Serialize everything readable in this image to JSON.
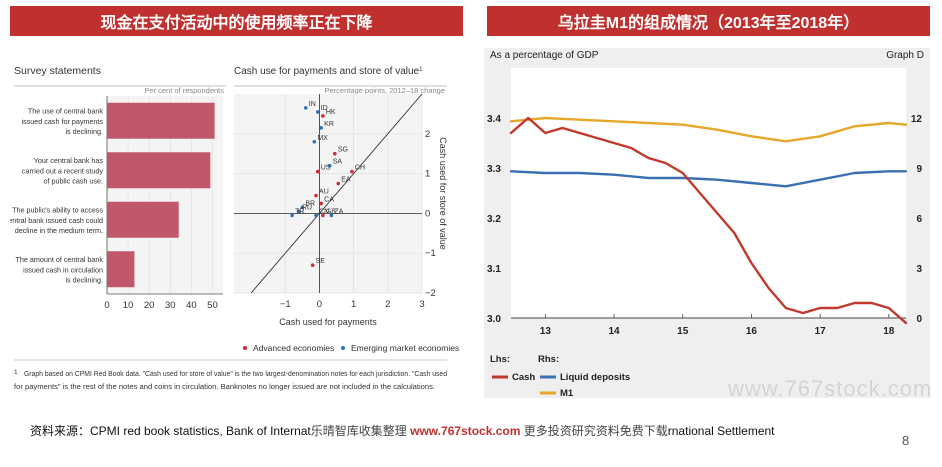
{
  "banners": {
    "left": "现金在支付活动中的使用频率正在下降",
    "right": "乌拉圭M1的组成情况（2013年至2018年）"
  },
  "chart_data": [
    {
      "type": "bar",
      "title": "Survey statements",
      "unit_label": "Per cent of respondents",
      "orientation": "horizontal",
      "categories": [
        "The use of central bank issued cash for payments is declining.",
        "Your central bank has carried out a recent study of public cash use.",
        "The public's ability to access central bank issued cash could decline in the medium term.",
        "The amount of central bank issued cash in circulation is declining."
      ],
      "category_lines": [
        [
          "The use of central bank",
          "issued cash for payments",
          "is declining."
        ],
        [
          "Your central bank has",
          "carried out a recent study",
          "of public cash use."
        ],
        [
          "The public's ability to access",
          "central bank issued cash could",
          "decline in the medium term."
        ],
        [
          "The amount of central bank",
          "issued cash in circulation",
          "is declining."
        ]
      ],
      "values": [
        51,
        49,
        34,
        13
      ],
      "xlim": [
        0,
        55
      ],
      "xticks": [
        0,
        10,
        20,
        30,
        40,
        50
      ],
      "bar_color": "#c1576a"
    },
    {
      "type": "scatter",
      "title": "Cash use for payments and store of value",
      "title_sup": "1",
      "subtitle": "Percentage points, 2012–18 change",
      "xlabel": "Cash used for payments",
      "ylabel": "Cash used for store of value",
      "xlim": [
        -2.5,
        3
      ],
      "ylim": [
        -2,
        3
      ],
      "xticks": [
        -1,
        0,
        1,
        2,
        3
      ],
      "yticks": [
        -2,
        -1,
        0,
        1,
        2
      ],
      "diagonal": true,
      "series": [
        {
          "name": "Advanced economies",
          "color": "#d3283a"
        },
        {
          "name": "Emerging market economies",
          "color": "#2f6fb5"
        }
      ],
      "points": [
        {
          "label": "IN",
          "x": -0.4,
          "y": 2.65,
          "series": 1
        },
        {
          "label": "ID",
          "x": -0.05,
          "y": 2.55,
          "series": 1
        },
        {
          "label": "HK",
          "x": 0.1,
          "y": 2.45,
          "series": 0
        },
        {
          "label": "KR",
          "x": 0.05,
          "y": 2.15,
          "series": 1
        },
        {
          "label": "MX",
          "x": -0.15,
          "y": 1.8,
          "series": 1
        },
        {
          "label": "SG",
          "x": 0.45,
          "y": 1.5,
          "series": 0
        },
        {
          "label": "US",
          "x": -0.05,
          "y": 1.05,
          "series": 0
        },
        {
          "label": "SA",
          "x": 0.3,
          "y": 1.2,
          "series": 1
        },
        {
          "label": "CH",
          "x": 0.95,
          "y": 1.05,
          "series": 0
        },
        {
          "label": "EA",
          "x": 0.55,
          "y": 0.75,
          "series": 0
        },
        {
          "label": "AU",
          "x": -0.1,
          "y": 0.45,
          "series": 0
        },
        {
          "label": "CA",
          "x": 0.05,
          "y": 0.25,
          "series": 0
        },
        {
          "label": "BR",
          "x": -0.5,
          "y": 0.15,
          "series": 1
        },
        {
          "label": "RU",
          "x": -0.6,
          "y": 0.05,
          "series": 1
        },
        {
          "label": "TR",
          "x": -0.8,
          "y": -0.05,
          "series": 1
        },
        {
          "label": "CN",
          "x": -0.1,
          "y": -0.05,
          "series": 1
        },
        {
          "label": "GB",
          "x": 0.1,
          "y": -0.05,
          "series": 0
        },
        {
          "label": "ZA",
          "x": 0.35,
          "y": -0.05,
          "series": 1
        },
        {
          "label": "SE",
          "x": -0.2,
          "y": -1.3,
          "series": 0
        }
      ]
    },
    {
      "type": "line",
      "title": "As a percentage of GDP",
      "graph_tag": "Graph D",
      "x_ticklabels": [
        "13",
        "14",
        "15",
        "16",
        "17",
        "18"
      ],
      "x_tickvalues": [
        2013,
        2014,
        2015,
        2016,
        2017,
        2018
      ],
      "xlim": [
        2012.5,
        2018.25
      ],
      "left_axis": {
        "name": "Lhs",
        "ylim": [
          3.0,
          3.5
        ],
        "ticks": [
          3.0,
          3.1,
          3.2,
          3.3,
          3.4
        ],
        "ticklabels": [
          "3.0",
          "3.1",
          "3.2",
          "3.3",
          "3.4"
        ]
      },
      "right_axis": {
        "name": "Rhs",
        "ylim": [
          0,
          15
        ],
        "ticks": [
          0,
          3,
          6,
          9,
          12
        ],
        "ticklabels": [
          "0",
          "3",
          "6",
          "9",
          "12"
        ]
      },
      "series": [
        {
          "name": "Cash",
          "axis": "left",
          "color": "#c0392b",
          "x": [
            2012.5,
            2012.75,
            2013.0,
            2013.25,
            2013.5,
            2013.75,
            2014.0,
            2014.25,
            2014.5,
            2014.75,
            2015.0,
            2015.25,
            2015.5,
            2015.75,
            2016.0,
            2016.25,
            2016.5,
            2016.75,
            2017.0,
            2017.25,
            2017.5,
            2017.75,
            2018.0,
            2018.25
          ],
          "y": [
            3.37,
            3.4,
            3.37,
            3.38,
            3.37,
            3.36,
            3.35,
            3.34,
            3.32,
            3.31,
            3.29,
            3.25,
            3.21,
            3.17,
            3.11,
            3.06,
            3.02,
            3.01,
            3.02,
            3.02,
            3.03,
            3.03,
            3.02,
            2.99
          ]
        },
        {
          "name": "Liquid deposits",
          "axis": "right",
          "color": "#3a6fb0",
          "x": [
            2012.5,
            2013.0,
            2013.5,
            2014.0,
            2014.5,
            2015.0,
            2015.5,
            2016.0,
            2016.5,
            2017.0,
            2017.5,
            2018.0,
            2018.25
          ],
          "y": [
            8.8,
            8.7,
            8.7,
            8.6,
            8.4,
            8.4,
            8.3,
            8.1,
            7.9,
            8.3,
            8.7,
            8.8,
            8.8
          ]
        },
        {
          "name": "M1",
          "axis": "right",
          "color": "#e6a72a",
          "x": [
            2012.5,
            2013.0,
            2013.5,
            2014.0,
            2014.5,
            2015.0,
            2015.5,
            2016.0,
            2016.5,
            2017.0,
            2017.5,
            2018.0,
            2018.25
          ],
          "y": [
            11.8,
            12.0,
            11.9,
            11.8,
            11.7,
            11.6,
            11.3,
            10.9,
            10.6,
            10.9,
            11.5,
            11.7,
            11.6
          ]
        }
      ]
    }
  ],
  "footnote": {
    "marker": "1",
    "line1": "Graph based on CPMI Red Book data. \"Cash used for store of value\" is the two largest-denomination notes for each jurisdiction. \"Cash used",
    "line2": "for payments\" is the rest of the notes and coins in circulation. Banknotes no longer issued are not included in the calculations."
  },
  "footer": {
    "source_prefix": "资料来源：CPMI red book statistics, Bank of Internat",
    "overlay_text": "乐晴智库收集整理",
    "site": "www.767stock.com",
    "overlay_suffix": "更多投资研究资料免费下载",
    "source_suffix": "rnational Settlement"
  },
  "watermark": "www.767stock.com",
  "page_number": "8"
}
